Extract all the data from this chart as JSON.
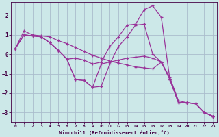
{
  "xlabel": "Windchill (Refroidissement éolien,°C)",
  "bg_color": "#cce8e8",
  "grid_color": "#aabccc",
  "line_color": "#993399",
  "xlim": [
    -0.5,
    23.5
  ],
  "ylim": [
    -3.5,
    2.7
  ],
  "xticks": [
    0,
    1,
    2,
    3,
    4,
    5,
    6,
    7,
    8,
    9,
    10,
    11,
    12,
    13,
    14,
    15,
    16,
    17,
    18,
    19,
    20,
    21,
    22,
    23
  ],
  "yticks": [
    -3,
    -2,
    -1,
    0,
    1,
    2
  ],
  "curves": [
    [
      0.3,
      1.2,
      1.0,
      0.95,
      0.9,
      0.7,
      0.55,
      0.35,
      0.15,
      -0.05,
      -0.2,
      -0.35,
      -0.45,
      -0.55,
      -0.65,
      -0.7,
      -0.75,
      -0.4,
      -1.2,
      -2.4,
      -2.5,
      -2.55,
      -3.0,
      -3.2
    ],
    [
      0.3,
      1.0,
      0.95,
      0.9,
      0.6,
      0.2,
      -0.25,
      -0.2,
      -0.3,
      -0.5,
      -0.4,
      0.4,
      0.9,
      1.5,
      1.55,
      2.3,
      2.5,
      1.9,
      -1.3,
      -2.5,
      -2.5,
      -2.55,
      -3.0,
      -3.2
    ],
    [
      0.3,
      1.0,
      0.95,
      0.9,
      0.6,
      0.2,
      -0.25,
      -1.3,
      -1.35,
      -1.7,
      -1.65,
      -0.5,
      0.4,
      0.9,
      1.5,
      1.55,
      0.0,
      -0.4,
      -1.3,
      -2.5,
      -2.5,
      -2.55,
      -3.0,
      -3.2
    ],
    [
      0.3,
      1.0,
      0.95,
      0.9,
      0.6,
      0.2,
      -0.25,
      -1.3,
      -1.35,
      -1.7,
      -0.5,
      -0.4,
      -0.3,
      -0.2,
      -0.15,
      -0.1,
      -0.2,
      -0.4,
      -1.3,
      -2.5,
      -2.5,
      -2.55,
      -3.0,
      -3.2
    ]
  ]
}
